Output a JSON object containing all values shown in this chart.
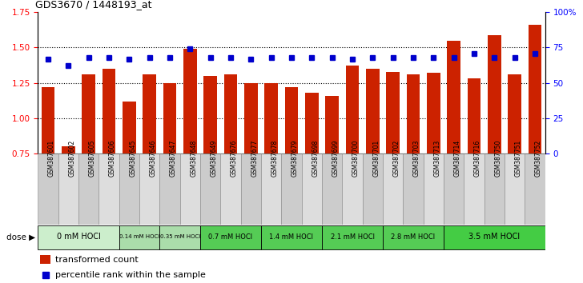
{
  "title": "GDS3670 / 1448193_at",
  "samples": [
    "GSM387601",
    "GSM387602",
    "GSM387605",
    "GSM387606",
    "GSM387645",
    "GSM387646",
    "GSM387647",
    "GSM387648",
    "GSM387649",
    "GSM387676",
    "GSM387677",
    "GSM387678",
    "GSM387679",
    "GSM387698",
    "GSM387699",
    "GSM387700",
    "GSM387701",
    "GSM387702",
    "GSM387703",
    "GSM387713",
    "GSM387714",
    "GSM387716",
    "GSM387750",
    "GSM387751",
    "GSM387752"
  ],
  "bar_values": [
    1.22,
    0.8,
    1.31,
    1.35,
    1.12,
    1.31,
    1.25,
    1.49,
    1.3,
    1.31,
    1.25,
    1.25,
    1.22,
    1.18,
    1.16,
    1.37,
    1.35,
    1.33,
    1.31,
    1.32,
    1.55,
    1.28,
    1.59,
    1.31,
    1.66
  ],
  "percentile_values": [
    1.42,
    1.37,
    1.43,
    1.43,
    1.42,
    1.43,
    1.43,
    1.49,
    1.43,
    1.43,
    1.42,
    1.43,
    1.43,
    1.43,
    1.43,
    1.42,
    1.43,
    1.43,
    1.43,
    1.43,
    1.43,
    1.46,
    1.43,
    1.43,
    1.46
  ],
  "dose_groups": [
    {
      "label": "0 mM HOCl",
      "start": 0,
      "end": 4,
      "color": "#cceecc"
    },
    {
      "label": "0.14 mM HOCl",
      "start": 4,
      "end": 6,
      "color": "#aaddaa"
    },
    {
      "label": "0.35 mM HOCl",
      "start": 6,
      "end": 8,
      "color": "#aaddaa"
    },
    {
      "label": "0.7 mM HOCl",
      "start": 8,
      "end": 11,
      "color": "#55cc55"
    },
    {
      "label": "1.4 mM HOCl",
      "start": 11,
      "end": 14,
      "color": "#55cc55"
    },
    {
      "label": "2.1 mM HOCl",
      "start": 14,
      "end": 17,
      "color": "#55cc55"
    },
    {
      "label": "2.8 mM HOCl",
      "start": 17,
      "end": 20,
      "color": "#55cc55"
    },
    {
      "label": "3.5 mM HOCl",
      "start": 20,
      "end": 25,
      "color": "#44cc44"
    }
  ],
  "bar_color": "#cc2200",
  "percentile_color": "#0000cc",
  "ylim_left": [
    0.75,
    1.75
  ],
  "ylim_right": [
    0,
    100
  ],
  "yticks_left": [
    0.75,
    1.0,
    1.25,
    1.5,
    1.75
  ],
  "yticks_right": [
    0,
    25,
    50,
    75,
    100
  ],
  "ylabel_right_labels": [
    "0",
    "25",
    "50",
    "75",
    "100%"
  ],
  "bg_color": "#ffffff",
  "baseline": 0.75,
  "sample_box_color_odd": "#cccccc",
  "sample_box_color_even": "#dddddd",
  "dose_label": "dose"
}
